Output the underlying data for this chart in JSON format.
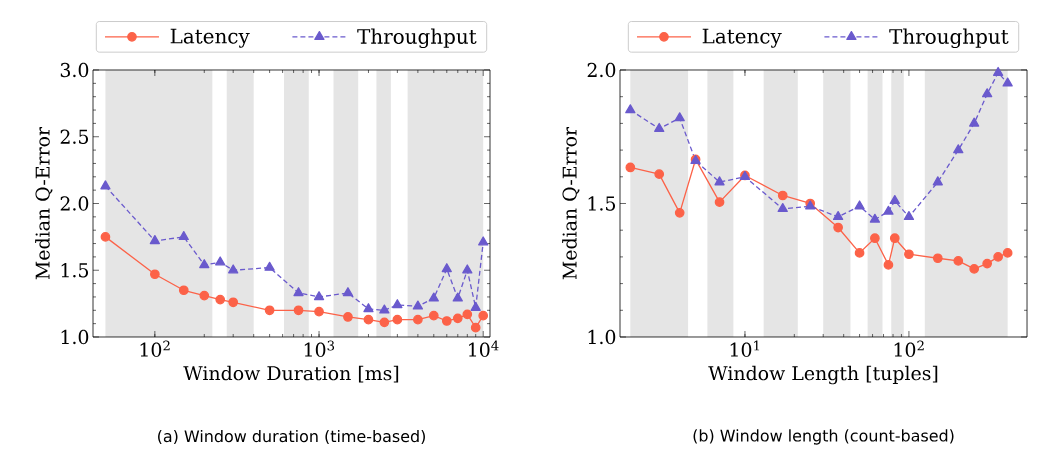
{
  "chart_data": [
    {
      "type": "line",
      "xlabel": "Window Duration [ms]",
      "ylabel": "Median Q-Error",
      "log": "x",
      "legend": "top",
      "x": [
        50,
        100,
        150,
        200,
        250,
        300,
        500,
        750,
        1000,
        1500,
        2000,
        2500,
        3000,
        4000,
        5000,
        6000,
        7000,
        8000,
        9000,
        10000
      ],
      "series": [
        {
          "name": "Latency",
          "color": "#fc6248",
          "marker": "circle",
          "line_style": "solid",
          "values": [
            1.75,
            1.47,
            1.35,
            1.31,
            1.28,
            1.26,
            1.2,
            1.2,
            1.19,
            1.15,
            1.13,
            1.11,
            1.13,
            1.13,
            1.16,
            1.12,
            1.14,
            1.17,
            1.07,
            1.16
          ]
        },
        {
          "name": "Throughput",
          "color": "#6a5acd",
          "marker": "triangle",
          "line_style": "dashed",
          "values": [
            2.13,
            1.72,
            1.75,
            1.54,
            1.56,
            1.5,
            1.52,
            1.33,
            1.3,
            1.33,
            1.21,
            1.2,
            1.24,
            1.23,
            1.29,
            1.51,
            1.29,
            1.5,
            1.22,
            1.71
          ]
        }
      ],
      "bands": [
        {
          "axis": "x",
          "from": 50,
          "to": 224,
          "color": "#e5e5e5"
        },
        {
          "axis": "x",
          "from": 274,
          "to": 400,
          "color": "#e5e5e5"
        },
        {
          "axis": "x",
          "from": 612,
          "to": 866,
          "color": "#e5e5e5"
        },
        {
          "axis": "x",
          "from": 1225,
          "to": 1732,
          "color": "#e5e5e5"
        },
        {
          "axis": "x",
          "from": 2236,
          "to": 2739,
          "color": "#e5e5e5"
        },
        {
          "axis": "x",
          "from": 3464,
          "to": 10000,
          "color": "#e5e5e5"
        }
      ],
      "xlim": [
        42,
        11000
      ],
      "ylim": [
        1.0,
        3.0
      ],
      "xticks": [
        {
          "value": 100,
          "label": "10$^{2}$"
        },
        {
          "value": 1000,
          "label": "10$^{3}$"
        },
        {
          "value": 10000,
          "label": "10$^{4}$"
        }
      ],
      "yticks": [
        {
          "value": 1,
          "label": "1.0"
        },
        {
          "value": 1.5,
          "label": "1.5"
        },
        {
          "value": 2,
          "label": "2.0"
        },
        {
          "value": 2.5,
          "label": "2.5"
        },
        {
          "value": 3,
          "label": "3.0"
        }
      ],
      "annotations": [
        "(a) Window duration (time-based)"
      ]
    },
    {
      "type": "line",
      "xlabel": "Window Length [tuples]",
      "ylabel": "Median Q-Error",
      "log": "x",
      "legend": "top",
      "x": [
        2,
        3,
        4,
        5,
        7,
        10,
        17,
        25,
        37,
        50,
        62,
        75,
        82,
        100,
        150,
        200,
        250,
        300,
        350,
        400
      ],
      "series": [
        {
          "name": "Latency",
          "color": "#fc6248",
          "marker": "circle",
          "line_style": "solid",
          "values": [
            1.635,
            1.61,
            1.465,
            1.665,
            1.505,
            1.605,
            1.53,
            1.5,
            1.41,
            1.315,
            1.37,
            1.27,
            1.37,
            1.31,
            1.295,
            1.285,
            1.255,
            1.275,
            1.3,
            1.315
          ]
        },
        {
          "name": "Throughput",
          "color": "#6a5acd",
          "marker": "triangle",
          "line_style": "dashed",
          "values": [
            1.85,
            1.78,
            1.82,
            1.66,
            1.58,
            1.6,
            1.48,
            1.49,
            1.45,
            1.49,
            1.44,
            1.47,
            1.51,
            1.45,
            1.58,
            1.7,
            1.8,
            1.91,
            1.99,
            1.95
          ]
        }
      ],
      "bands": [
        {
          "axis": "x",
          "from": 2,
          "to": 4.5,
          "color": "#e5e5e5"
        },
        {
          "axis": "x",
          "from": 5.9,
          "to": 8.5,
          "color": "#e5e5e5"
        },
        {
          "axis": "x",
          "from": 13,
          "to": 21,
          "color": "#e5e5e5"
        },
        {
          "axis": "x",
          "from": 30,
          "to": 44,
          "color": "#e5e5e5"
        },
        {
          "axis": "x",
          "from": 56,
          "to": 69,
          "color": "#e5e5e5"
        },
        {
          "axis": "x",
          "from": 78,
          "to": 93,
          "color": "#e5e5e5"
        },
        {
          "axis": "x",
          "from": 125,
          "to": 400,
          "color": "#e5e5e5"
        }
      ],
      "xlim": [
        1.73,
        525
      ],
      "ylim": [
        1.0,
        2.0
      ],
      "xticks": [
        {
          "value": 10,
          "label": "10$^{1}$"
        },
        {
          "value": 100,
          "label": "10$^{2}$"
        }
      ],
      "yticks": [
        {
          "value": 1,
          "label": "1.0"
        },
        {
          "value": 1.5,
          "label": "1.5"
        },
        {
          "value": 2,
          "label": "2.0"
        }
      ],
      "annotations": [
        "(b) Window length (count-based)"
      ]
    }
  ]
}
